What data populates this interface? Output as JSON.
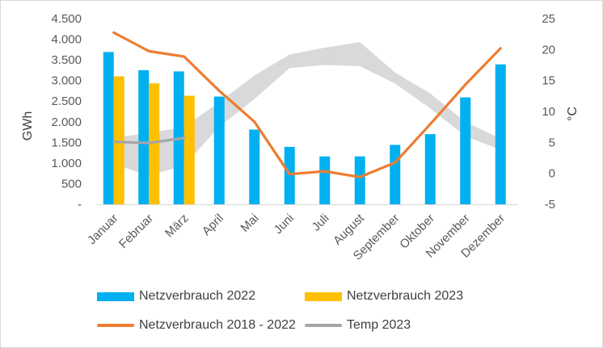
{
  "chart_data": {
    "type": "bar",
    "categories": [
      "Januar",
      "Februar",
      "März",
      "April",
      "Mai",
      "Juni",
      "Juli",
      "August",
      "September",
      "Oktober",
      "November",
      "Dezember"
    ],
    "ylabel_left": "GWh",
    "ylabel_right": "°C",
    "ylim_left": [
      0,
      4500
    ],
    "ylim_right": [
      -5,
      25
    ],
    "yticks_left": [
      "-",
      "500",
      "1.000",
      "1.500",
      "2.000",
      "2.500",
      "3.000",
      "3.500",
      "4.000",
      "4.500"
    ],
    "yticks_right": [
      "-5",
      "0",
      "5",
      "10",
      "15",
      "20",
      "25"
    ],
    "series": [
      {
        "name": "Netzverbrauch 2022",
        "kind": "bar",
        "axis": "left",
        "color": "#00b0f0",
        "values": [
          3690,
          3250,
          3220,
          2610,
          1810,
          1390,
          1160,
          1160,
          1440,
          1700,
          2590,
          3390
        ]
      },
      {
        "name": "Netzverbrauch 2023",
        "kind": "bar",
        "axis": "left",
        "color": "#ffc000",
        "values": [
          3100,
          2930,
          2630,
          null,
          null,
          null,
          null,
          null,
          null,
          null,
          null,
          null
        ]
      },
      {
        "name": "Netzverbrauch 2018 - 2022",
        "kind": "line",
        "axis": "left",
        "color": "#ed7d31",
        "values": [
          4160,
          3710,
          3580,
          2750,
          2000,
          730,
          800,
          660,
          1010,
          1940,
          2900,
          3780
        ]
      },
      {
        "name": "Temp 2023",
        "kind": "line",
        "axis": "right",
        "color": "#a6a6a6",
        "values": [
          5.1,
          4.9,
          5.7,
          null,
          null,
          null,
          null,
          null,
          null,
          null,
          null,
          null
        ]
      }
    ],
    "temp_range_band": {
      "axis": "right",
      "color": "#d9d9d9",
      "lower": [
        1.5,
        -0.4,
        1.3,
        7.5,
        12.0,
        17.0,
        17.5,
        17.3,
        14.5,
        10.5,
        6.0,
        3.8
      ],
      "upper": [
        5.8,
        6.5,
        7.5,
        11.5,
        15.8,
        19.2,
        20.3,
        21.2,
        16.3,
        12.9,
        8.3,
        5.6
      ]
    },
    "grid": false,
    "legend_position": "bottom"
  }
}
